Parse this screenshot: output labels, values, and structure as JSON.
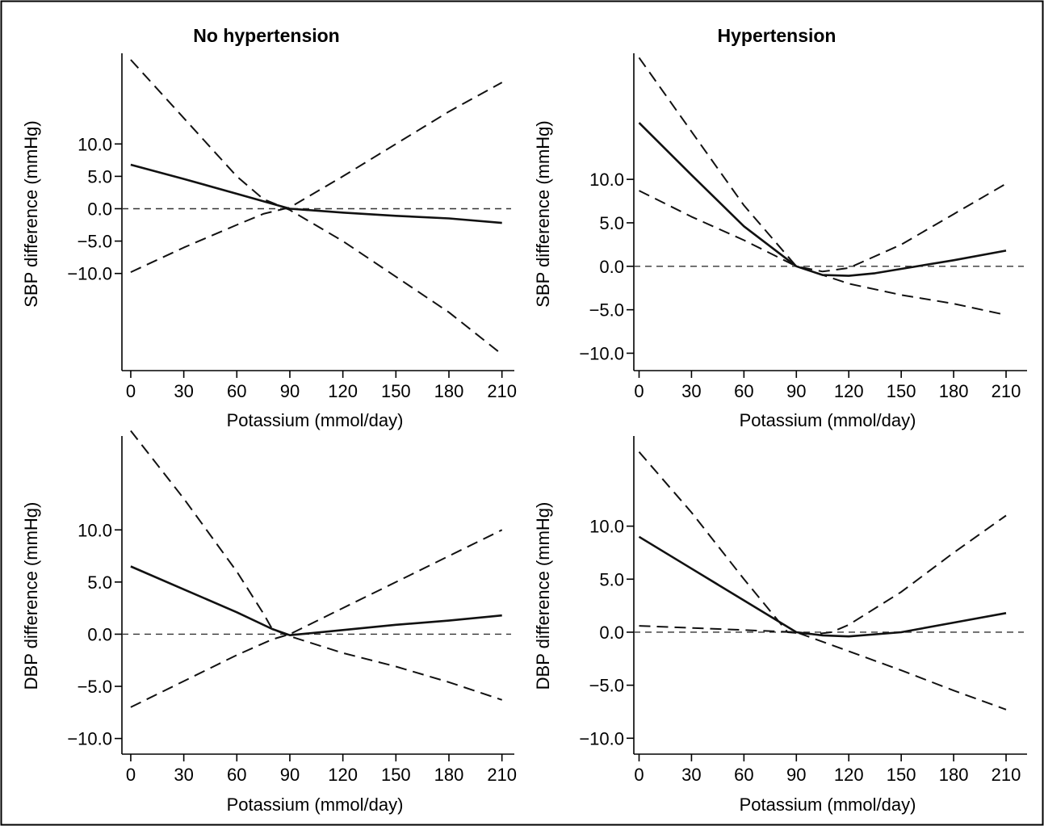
{
  "chart_data": [
    {
      "type": "line",
      "title": "No hypertension",
      "xlabel": "Potassium (mmol/day)",
      "ylabel": "SBP difference (mmHg)",
      "xlim": [
        -5,
        217
      ],
      "ylim": [
        -25,
        24
      ],
      "xticks": [
        0,
        30,
        60,
        90,
        120,
        150,
        180,
        210
      ],
      "yticks": [
        10.0,
        5.0,
        0.0,
        -5.0,
        -10.0
      ],
      "reference_line": 0,
      "series": [
        {
          "style": "solid",
          "x": [
            0,
            30,
            60,
            90,
            120,
            150,
            180,
            210
          ],
          "y": [
            6.8,
            4.6,
            2.3,
            0.0,
            -0.6,
            -1.1,
            -1.5,
            -2.2
          ]
        },
        {
          "style": "dashed",
          "x": [
            0,
            30,
            60,
            75,
            90,
            120,
            150,
            180,
            210
          ],
          "y": [
            23.0,
            14.0,
            5.0,
            1.5,
            -0.2,
            -5.0,
            -10.5,
            -16.0,
            -22.5
          ]
        },
        {
          "style": "dashed",
          "x": [
            0,
            30,
            60,
            75,
            90,
            120,
            150,
            180,
            210
          ],
          "y": [
            -9.8,
            -6.0,
            -2.5,
            -0.8,
            0.2,
            5.0,
            10.0,
            15.0,
            19.5
          ]
        }
      ]
    },
    {
      "type": "line",
      "title": "Hypertension",
      "xlabel": "Potassium (mmol/day)",
      "ylabel": "SBP difference (mmHg)",
      "xlim": [
        -3,
        222
      ],
      "ylim": [
        -12,
        24.5
      ],
      "xticks": [
        0,
        30,
        60,
        90,
        120,
        150,
        180,
        210
      ],
      "yticks": [
        10.0,
        5.0,
        0.0,
        -5.0,
        -10.0
      ],
      "reference_line": 0,
      "series": [
        {
          "style": "solid",
          "x": [
            0,
            30,
            60,
            90,
            105,
            120,
            135,
            150,
            180,
            210
          ],
          "y": [
            16.5,
            10.5,
            4.6,
            0.0,
            -1.0,
            -1.1,
            -0.8,
            -0.3,
            0.7,
            1.8
          ]
        },
        {
          "style": "dashed",
          "x": [
            0,
            30,
            60,
            90,
            105,
            120,
            150,
            180,
            210
          ],
          "y": [
            24.0,
            15.5,
            7.0,
            0.0,
            -0.6,
            -0.2,
            2.5,
            6.0,
            9.5
          ]
        },
        {
          "style": "dashed",
          "x": [
            0,
            30,
            60,
            90,
            120,
            150,
            180,
            210
          ],
          "y": [
            8.7,
            5.7,
            3.0,
            0.0,
            -2.0,
            -3.3,
            -4.3,
            -5.6
          ]
        }
      ]
    },
    {
      "type": "line",
      "title": "",
      "xlabel": "Potassium (mmol/day)",
      "ylabel": "DBP difference (mmHg)",
      "xlim": [
        -5,
        217
      ],
      "ylim": [
        -11.5,
        19
      ],
      "xticks": [
        0,
        30,
        60,
        90,
        120,
        150,
        180,
        210
      ],
      "yticks": [
        10.0,
        5.0,
        0.0,
        -5.0,
        -10.0
      ],
      "reference_line": 0,
      "series": [
        {
          "style": "solid",
          "x": [
            0,
            30,
            60,
            80,
            90,
            120,
            150,
            180,
            210
          ],
          "y": [
            6.5,
            4.3,
            2.1,
            0.5,
            -0.1,
            0.4,
            0.9,
            1.3,
            1.8
          ]
        },
        {
          "style": "dashed",
          "x": [
            0,
            30,
            60,
            75,
            80,
            90,
            120,
            150,
            180,
            210
          ],
          "y": [
            19.5,
            13.0,
            6.0,
            2.0,
            0.5,
            -0.2,
            -1.8,
            -3.1,
            -4.6,
            -6.3
          ]
        },
        {
          "style": "dashed",
          "x": [
            0,
            30,
            60,
            80,
            90,
            120,
            150,
            180,
            210
          ],
          "y": [
            -7.0,
            -4.5,
            -2.0,
            -0.5,
            0.0,
            2.5,
            5.0,
            7.5,
            10.0
          ]
        }
      ]
    },
    {
      "type": "line",
      "title": "",
      "xlabel": "Potassium (mmol/day)",
      "ylabel": "DBP difference (mmHg)",
      "xlim": [
        -3,
        222
      ],
      "ylim": [
        -11.5,
        18.5
      ],
      "xticks": [
        0,
        30,
        60,
        90,
        120,
        150,
        180,
        210
      ],
      "yticks": [
        10.0,
        5.0,
        0.0,
        -5.0,
        -10.0
      ],
      "reference_line": 0,
      "series": [
        {
          "style": "solid",
          "x": [
            0,
            30,
            60,
            90,
            105,
            120,
            150,
            180,
            210
          ],
          "y": [
            9.0,
            6.0,
            3.0,
            0.0,
            -0.3,
            -0.4,
            0.0,
            0.9,
            1.8
          ]
        },
        {
          "style": "dashed",
          "x": [
            0,
            30,
            60,
            85,
            100,
            110,
            120,
            150,
            180,
            210
          ],
          "y": [
            17.0,
            11.3,
            5.0,
            0.0,
            -0.2,
            0.0,
            0.7,
            3.8,
            7.5,
            11.0
          ]
        },
        {
          "style": "dashed",
          "x": [
            0,
            30,
            60,
            90,
            120,
            150,
            180,
            210
          ],
          "y": [
            0.6,
            0.4,
            0.2,
            0.0,
            -1.8,
            -3.6,
            -5.5,
            -7.3
          ]
        }
      ]
    }
  ]
}
